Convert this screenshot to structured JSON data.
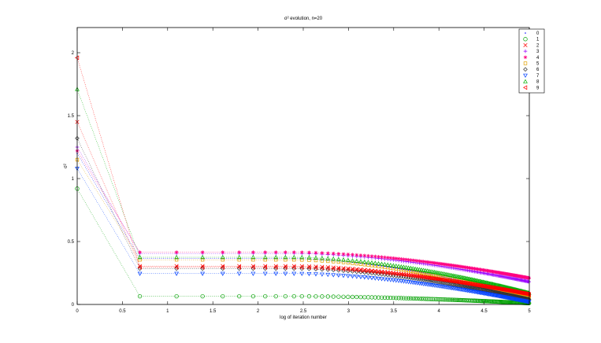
{
  "chart_data": {
    "type": "scatter",
    "title": "σ² evolution, n=20",
    "xlabel": "log of iteration number",
    "ylabel": "σ²",
    "xlim": [
      0,
      5
    ],
    "ylim": [
      0,
      2.2
    ],
    "xticks": [
      "0",
      "0.5",
      "1",
      "1.5",
      "2",
      "2.5",
      "3",
      "3.5",
      "4",
      "4.5",
      "5"
    ],
    "yticks": [
      "0",
      "0.5",
      "1",
      "1.5",
      "2"
    ],
    "grid": false,
    "legend_position": "top-right",
    "series": [
      {
        "name": "0",
        "color": "#0000ff",
        "marker": "point",
        "start": 1.2,
        "plateau": 0.365,
        "end": 0.05
      },
      {
        "name": "1",
        "color": "#00a000",
        "marker": "circle",
        "start": 0.92,
        "plateau": 0.065,
        "end": 0.01
      },
      {
        "name": "2",
        "color": "#ff0000",
        "marker": "x",
        "start": 1.45,
        "plateau": 0.305,
        "end": 0.07
      },
      {
        "name": "3",
        "color": "#9900ff",
        "marker": "plus",
        "start": 1.25,
        "plateau": 0.405,
        "end": 0.18
      },
      {
        "name": "4",
        "color": "#ff0080",
        "marker": "star",
        "start": 1.22,
        "plateau": 0.415,
        "end": 0.21
      },
      {
        "name": "5",
        "color": "#e0a000",
        "marker": "square",
        "start": 1.15,
        "plateau": 0.355,
        "end": 0.06
      },
      {
        "name": "6",
        "color": "#333333",
        "marker": "diamond",
        "start": 1.32,
        "plateau": 0.285,
        "end": 0.04
      },
      {
        "name": "7",
        "color": "#0040ff",
        "marker": "triangle-down",
        "start": 1.08,
        "plateau": 0.245,
        "end": 0.02
      },
      {
        "name": "8",
        "color": "#00b000",
        "marker": "triangle-up",
        "start": 1.71,
        "plateau": 0.375,
        "end": 0.09
      },
      {
        "name": "9",
        "color": "#ff0000",
        "marker": "triangle-left",
        "start": 1.96,
        "plateau": 0.295,
        "end": 0.08
      }
    ]
  }
}
